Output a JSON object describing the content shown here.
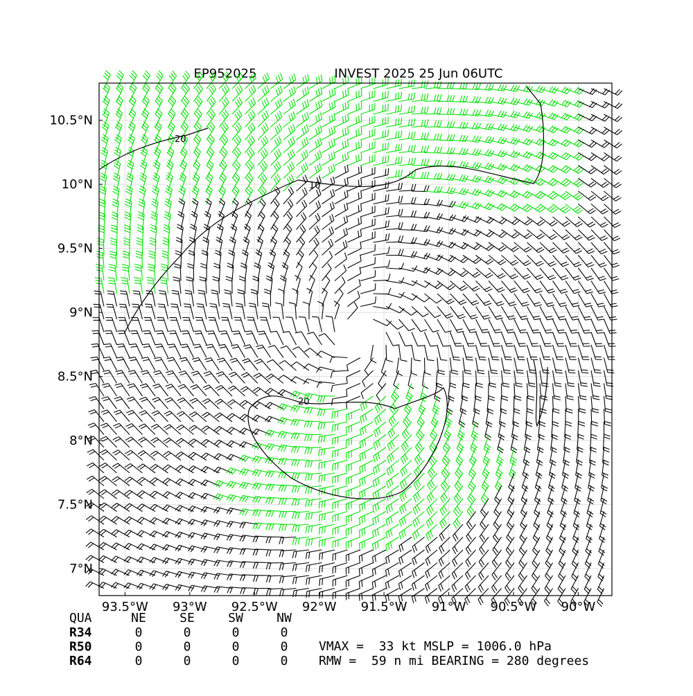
{
  "header": {
    "storm_id": "EP952025",
    "title": "INVEST 2025 25 Jun 06UTC"
  },
  "map": {
    "xlim": [
      -93.7,
      -89.74
    ],
    "ylim": [
      6.79,
      10.79
    ],
    "grid": true,
    "xticks": [
      {
        "value": -93.5,
        "label": "93.5°W"
      },
      {
        "value": -93,
        "label": "93°W"
      },
      {
        "value": -92.5,
        "label": "92.5°W"
      },
      {
        "value": -92,
        "label": "92°W"
      },
      {
        "value": -91.5,
        "label": "91.5°W"
      },
      {
        "value": -91,
        "label": "91°W"
      },
      {
        "value": -90.5,
        "label": "90.5°W"
      },
      {
        "value": -90,
        "label": "90°W"
      }
    ],
    "yticks": [
      {
        "value": 7,
        "label": "7°N"
      },
      {
        "value": 7.5,
        "label": "7.5°N"
      },
      {
        "value": 8,
        "label": "8°N"
      },
      {
        "value": 8.5,
        "label": "8.5°N"
      },
      {
        "value": 9,
        "label": "9°N"
      },
      {
        "value": 9.5,
        "label": "9.5°N"
      },
      {
        "value": 10,
        "label": "10°N"
      },
      {
        "value": 10.5,
        "label": "10.5°N"
      }
    ],
    "contour_labels": [
      "20",
      "10",
      "20"
    ]
  },
  "table": {
    "header": [
      "QUA",
      "NE",
      "SE",
      "SW",
      "NW"
    ],
    "rows": [
      [
        "R34",
        0,
        0,
        0,
        0
      ],
      [
        "R50",
        0,
        0,
        0,
        0
      ],
      [
        "R64",
        0,
        0,
        0,
        0
      ]
    ]
  },
  "info": [
    "VMAX =  33 kt MSLP = 1006.0 hPa",
    "RMW =  59 n mi BEARING = 280 degrees"
  ]
}
